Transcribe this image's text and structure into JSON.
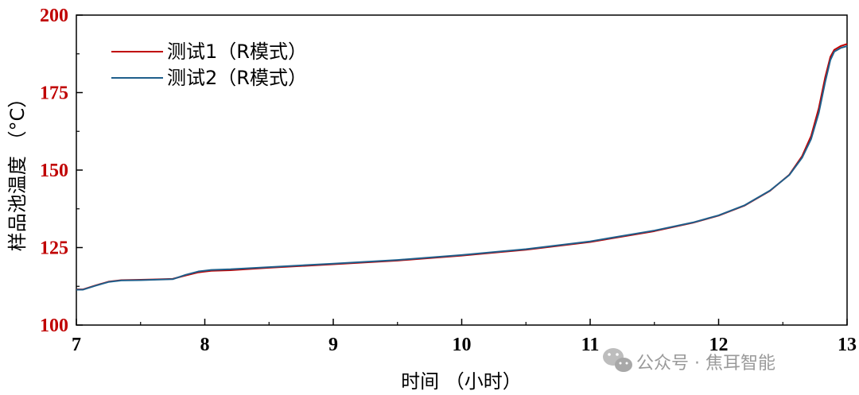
{
  "chart_data": {
    "type": "line",
    "xlabel": "时间 （小时）",
    "ylabel": "样品池温度 （°C）",
    "xlim": [
      7,
      13
    ],
    "ylim": [
      100,
      200
    ],
    "x_ticks": [
      "7",
      "8",
      "9",
      "10",
      "11",
      "12",
      "13"
    ],
    "y_ticks": [
      "100",
      "125",
      "150",
      "175",
      "200"
    ],
    "legend_position": "top-left",
    "grid": false,
    "series": [
      {
        "name": "测试1（R模式）",
        "color": "#c00000",
        "points": [
          [
            7.0,
            111.5
          ],
          [
            7.05,
            111.5
          ],
          [
            7.15,
            112.8
          ],
          [
            7.25,
            114.0
          ],
          [
            7.35,
            114.5
          ],
          [
            7.5,
            114.6
          ],
          [
            7.6,
            114.7
          ],
          [
            7.75,
            114.9
          ],
          [
            7.85,
            116.0
          ],
          [
            7.95,
            117.0
          ],
          [
            8.05,
            117.5
          ],
          [
            8.2,
            117.7
          ],
          [
            8.5,
            118.5
          ],
          [
            9.0,
            119.6
          ],
          [
            9.5,
            120.8
          ],
          [
            10.0,
            122.4
          ],
          [
            10.5,
            124.3
          ],
          [
            11.0,
            126.8
          ],
          [
            11.5,
            130.3
          ],
          [
            11.8,
            133.0
          ],
          [
            12.0,
            135.3
          ],
          [
            12.2,
            138.5
          ],
          [
            12.4,
            143.3
          ],
          [
            12.55,
            148.5
          ],
          [
            12.65,
            154.5
          ],
          [
            12.72,
            161.0
          ],
          [
            12.78,
            170.0
          ],
          [
            12.83,
            180.0
          ],
          [
            12.87,
            186.5
          ],
          [
            12.9,
            188.8
          ],
          [
            12.95,
            190.0
          ],
          [
            13.0,
            190.7
          ]
        ]
      },
      {
        "name": "测试2（R模式）",
        "color": "#1f5f8b",
        "points": [
          [
            7.0,
            111.4
          ],
          [
            7.05,
            111.4
          ],
          [
            7.15,
            112.7
          ],
          [
            7.25,
            113.9
          ],
          [
            7.35,
            114.4
          ],
          [
            7.5,
            114.5
          ],
          [
            7.6,
            114.6
          ],
          [
            7.75,
            114.8
          ],
          [
            7.85,
            116.2
          ],
          [
            7.95,
            117.3
          ],
          [
            8.05,
            117.8
          ],
          [
            8.2,
            118.0
          ],
          [
            8.5,
            118.7
          ],
          [
            9.0,
            119.8
          ],
          [
            9.5,
            121.0
          ],
          [
            10.0,
            122.6
          ],
          [
            10.5,
            124.5
          ],
          [
            11.0,
            127.0
          ],
          [
            11.5,
            130.5
          ],
          [
            11.8,
            133.1
          ],
          [
            12.0,
            135.4
          ],
          [
            12.2,
            138.6
          ],
          [
            12.4,
            143.4
          ],
          [
            12.55,
            148.4
          ],
          [
            12.65,
            154.0
          ],
          [
            12.72,
            160.0
          ],
          [
            12.78,
            168.5
          ],
          [
            12.83,
            178.5
          ],
          [
            12.87,
            185.5
          ],
          [
            12.9,
            188.2
          ],
          [
            12.95,
            189.4
          ],
          [
            13.0,
            190.0
          ]
        ]
      }
    ]
  },
  "watermark": {
    "icon": "wechat-icon",
    "text": "公众号 · 焦耳智能"
  }
}
